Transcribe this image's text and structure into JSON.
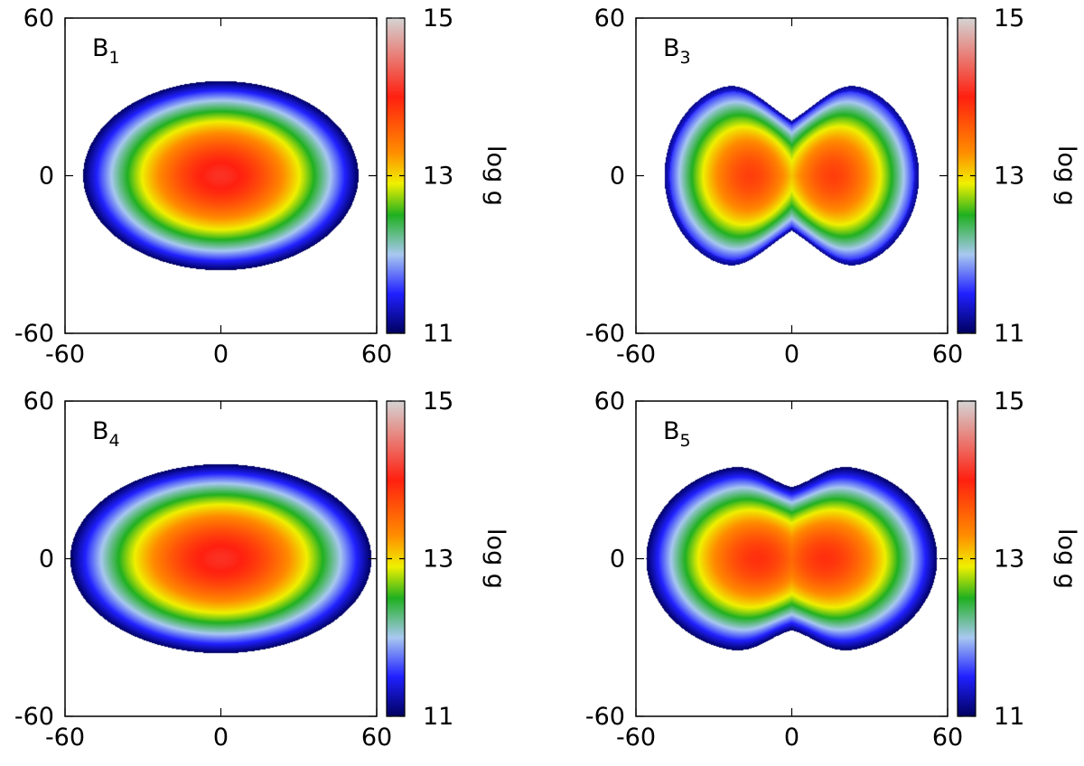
{
  "figure": {
    "colorbar_label": "log g",
    "colormap": [
      "#000060",
      "#2020ff",
      "#a8c8f0",
      "#20b020",
      "#f0f000",
      "#ff8c00",
      "#ff2010",
      "#d4d4d4"
    ],
    "colormap_stops": [
      11.0,
      11.5,
      12.0,
      12.5,
      12.9,
      13.3,
      14.0,
      15.0
    ]
  },
  "chart_data": [
    {
      "type": "heatmap",
      "panel": "B",
      "panel_sub": "1",
      "xlim": [
        -60,
        60
      ],
      "ylim": [
        -60,
        60
      ],
      "x_ticks": [
        "-60",
        "0",
        "60"
      ],
      "y_ticks": [
        "-60",
        "0",
        "60"
      ],
      "colorbar_range": [
        11,
        15
      ],
      "colorbar_ticks": [
        "11",
        "13",
        "15"
      ],
      "shape": "ellipse",
      "extent_x": 53,
      "extent_y": 36,
      "center_value": 14.1,
      "edge_value": 11.0,
      "lobe_offset": 0,
      "waist_depth": 0
    },
    {
      "type": "heatmap",
      "panel": "B",
      "panel_sub": "3",
      "xlim": [
        -60,
        60
      ],
      "ylim": [
        -60,
        60
      ],
      "x_ticks": [
        "-60",
        "0",
        "60"
      ],
      "y_ticks": [
        "-60",
        "0",
        "60"
      ],
      "colorbar_range": [
        11,
        15
      ],
      "colorbar_ticks": [
        "11",
        "13",
        "15"
      ],
      "shape": "two-lobes",
      "extent_x": 49,
      "extent_y": 36,
      "center_value": 13.8,
      "edge_value": 11.3,
      "lobe_offset": 16,
      "waist_depth": 0.55
    },
    {
      "type": "heatmap",
      "panel": "B",
      "panel_sub": "4",
      "xlim": [
        -60,
        60
      ],
      "ylim": [
        -60,
        60
      ],
      "x_ticks": [
        "-60",
        "0",
        "60"
      ],
      "y_ticks": [
        "-60",
        "0",
        "60"
      ],
      "colorbar_range": [
        11,
        15
      ],
      "colorbar_ticks": [
        "11",
        "13",
        "15"
      ],
      "shape": "ellipse",
      "extent_x": 58,
      "extent_y": 36,
      "center_value": 14.1,
      "edge_value": 11.0,
      "lobe_offset": 0,
      "waist_depth": 0
    },
    {
      "type": "heatmap",
      "panel": "B",
      "panel_sub": "5",
      "xlim": [
        -60,
        60
      ],
      "ylim": [
        -60,
        60
      ],
      "x_ticks": [
        "-60",
        "0",
        "60"
      ],
      "y_ticks": [
        "-60",
        "0",
        "60"
      ],
      "colorbar_range": [
        11,
        15
      ],
      "colorbar_ticks": [
        "11",
        "13",
        "15"
      ],
      "shape": "two-lobes",
      "extent_x": 56,
      "extent_y": 36,
      "center_value": 13.9,
      "edge_value": 11.0,
      "lobe_offset": 13,
      "waist_depth": 0.3
    }
  ]
}
